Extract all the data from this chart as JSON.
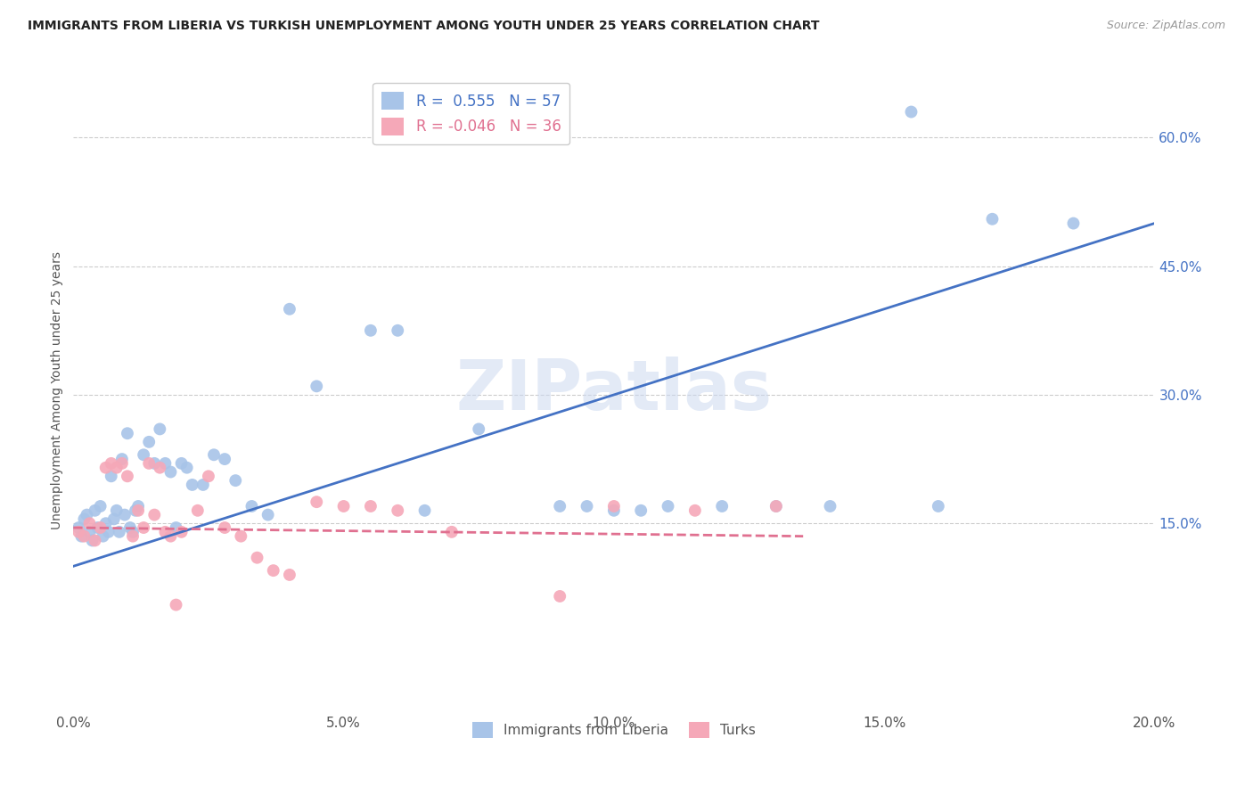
{
  "title": "IMMIGRANTS FROM LIBERIA VS TURKISH UNEMPLOYMENT AMONG YOUTH UNDER 25 YEARS CORRELATION CHART",
  "source": "Source: ZipAtlas.com",
  "ylabel": "Unemployment Among Youth under 25 years",
  "xlabel_ticks": [
    "0.0%",
    "5.0%",
    "10.0%",
    "15.0%",
    "20.0%"
  ],
  "xlabel_vals": [
    0.0,
    5.0,
    10.0,
    15.0,
    20.0
  ],
  "ylabel_ticks": [
    "15.0%",
    "30.0%",
    "45.0%",
    "60.0%"
  ],
  "ylabel_vals": [
    15.0,
    30.0,
    45.0,
    60.0
  ],
  "xlim": [
    0.0,
    20.0
  ],
  "ylim": [
    -7.0,
    68.0
  ],
  "legend1_R": " 0.555",
  "legend1_N": "57",
  "legend2_R": "-0.046",
  "legend2_N": "36",
  "series1_color": "#a8c4e8",
  "series2_color": "#f5a8b8",
  "trendline1_color": "#4472c4",
  "trendline2_color": "#e07090",
  "watermark": "ZIPatlas",
  "blue_scatter_x": [
    0.1,
    0.15,
    0.2,
    0.25,
    0.3,
    0.35,
    0.4,
    0.45,
    0.5,
    0.55,
    0.6,
    0.65,
    0.7,
    0.75,
    0.8,
    0.85,
    0.9,
    0.95,
    1.0,
    1.05,
    1.1,
    1.15,
    1.2,
    1.3,
    1.4,
    1.5,
    1.6,
    1.7,
    1.8,
    1.9,
    2.0,
    2.1,
    2.2,
    2.4,
    2.6,
    2.8,
    3.0,
    3.3,
    3.6,
    4.0,
    4.5,
    5.5,
    6.0,
    6.5,
    7.5,
    9.0,
    10.0,
    11.0,
    12.0,
    14.0,
    15.5,
    17.0,
    18.5,
    9.5,
    10.5,
    13.0,
    16.0
  ],
  "blue_scatter_y": [
    14.5,
    13.5,
    15.5,
    16.0,
    14.0,
    13.0,
    16.5,
    14.5,
    17.0,
    13.5,
    15.0,
    14.0,
    20.5,
    15.5,
    16.5,
    14.0,
    22.5,
    16.0,
    25.5,
    14.5,
    14.0,
    16.5,
    17.0,
    23.0,
    24.5,
    22.0,
    26.0,
    22.0,
    21.0,
    14.5,
    22.0,
    21.5,
    19.5,
    19.5,
    23.0,
    22.5,
    20.0,
    17.0,
    16.0,
    40.0,
    31.0,
    37.5,
    37.5,
    16.5,
    26.0,
    17.0,
    16.5,
    17.0,
    17.0,
    17.0,
    63.0,
    50.5,
    50.0,
    17.0,
    16.5,
    17.0,
    17.0
  ],
  "pink_scatter_x": [
    0.1,
    0.2,
    0.3,
    0.4,
    0.5,
    0.6,
    0.7,
    0.8,
    0.9,
    1.0,
    1.1,
    1.2,
    1.3,
    1.4,
    1.5,
    1.6,
    1.7,
    1.8,
    1.9,
    2.0,
    2.3,
    2.5,
    2.8,
    3.1,
    3.4,
    3.7,
    4.0,
    4.5,
    5.0,
    5.5,
    6.0,
    7.0,
    9.0,
    10.0,
    11.5,
    13.0
  ],
  "pink_scatter_y": [
    14.0,
    13.5,
    15.0,
    13.0,
    14.5,
    21.5,
    22.0,
    21.5,
    22.0,
    20.5,
    13.5,
    16.5,
    14.5,
    22.0,
    16.0,
    21.5,
    14.0,
    13.5,
    5.5,
    14.0,
    16.5,
    20.5,
    14.5,
    13.5,
    11.0,
    9.5,
    9.0,
    17.5,
    17.0,
    17.0,
    16.5,
    14.0,
    6.5,
    17.0,
    16.5,
    17.0
  ],
  "trendline1_x0": 0.0,
  "trendline1_x1": 20.0,
  "trendline1_y0": 10.0,
  "trendline1_y1": 50.0,
  "trendline2_x0": 0.0,
  "trendline2_x1": 13.5,
  "trendline2_y0": 14.5,
  "trendline2_y1": 13.5
}
